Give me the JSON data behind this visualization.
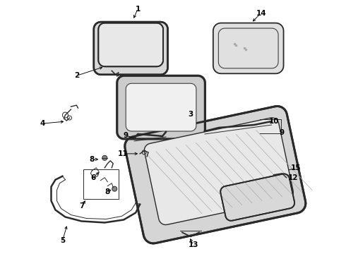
{
  "bg_color": "#ffffff",
  "line_color": "#2a2a2a",
  "text_color": "#000000",
  "lw_main": 1.3,
  "lw_thin": 0.7,
  "figsize": [
    4.9,
    3.6
  ],
  "dpi": 100
}
